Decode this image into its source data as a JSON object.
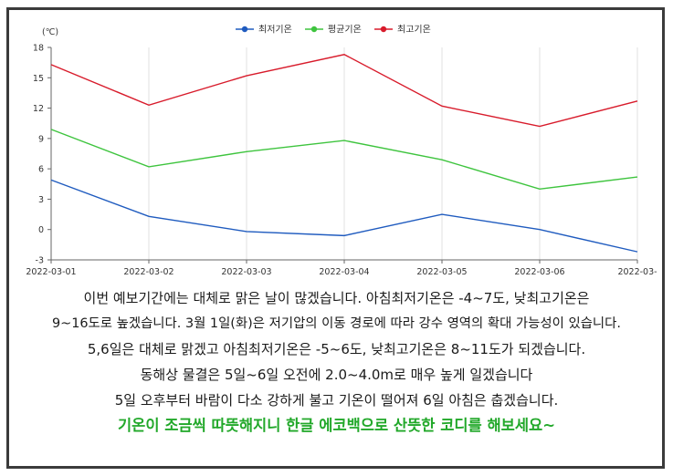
{
  "chart_data": {
    "type": "line",
    "title": "",
    "xlabel": "",
    "ylabel": "(℃)",
    "ylim": [
      -3,
      18
    ],
    "yticks": [
      -3,
      0,
      3,
      6,
      9,
      12,
      15,
      18
    ],
    "categories": [
      "2022-03-01",
      "2022-03-02",
      "2022-03-03",
      "2022-03-04",
      "2022-03-05",
      "2022-03-06",
      "2022-03-"
    ],
    "legend_position": "top-center",
    "grid": "vertical",
    "series": [
      {
        "name": "최저기온",
        "color": "#1f5bbf",
        "values": [
          4.9,
          1.3,
          -0.2,
          -0.6,
          1.5,
          0.0,
          -2.2
        ]
      },
      {
        "name": "평균기온",
        "color": "#3ec43e",
        "values": [
          9.9,
          6.2,
          7.7,
          8.8,
          6.9,
          4.0,
          5.2
        ]
      },
      {
        "name": "최고기온",
        "color": "#d81b2b",
        "values": [
          16.3,
          12.3,
          15.2,
          17.3,
          12.2,
          10.2,
          12.7
        ]
      }
    ]
  },
  "caption": {
    "lines": [
      "이번 예보기간에는 대체로 맑은 날이 많겠습니다. 아침최저기온은 -4~7도, 낮최고기온은",
      "9~16도로 높겠습니다. 3월 1일(화)은 저기압의 이동 경로에 따라 강수 영역의 확대 가능성이 있습니다.",
      "5,6일은 대체로 맑겠고 아침최저기온은 -5~6도, 낮최고기온은 8~11도가 되겠습니다.",
      "동해상 물결은 5일~6일 오전에 2.0~4.0m로 매우 높게 일겠습니다",
      "5일 오후부터 바람이 다소 강하게 불고 기온이 떨어져 6일 아침은 춥겠습니다."
    ],
    "highlight": "기온이 조금씩 따뜻해지니 한글 에코백으로 산뜻한 코디를 해보세요~"
  }
}
